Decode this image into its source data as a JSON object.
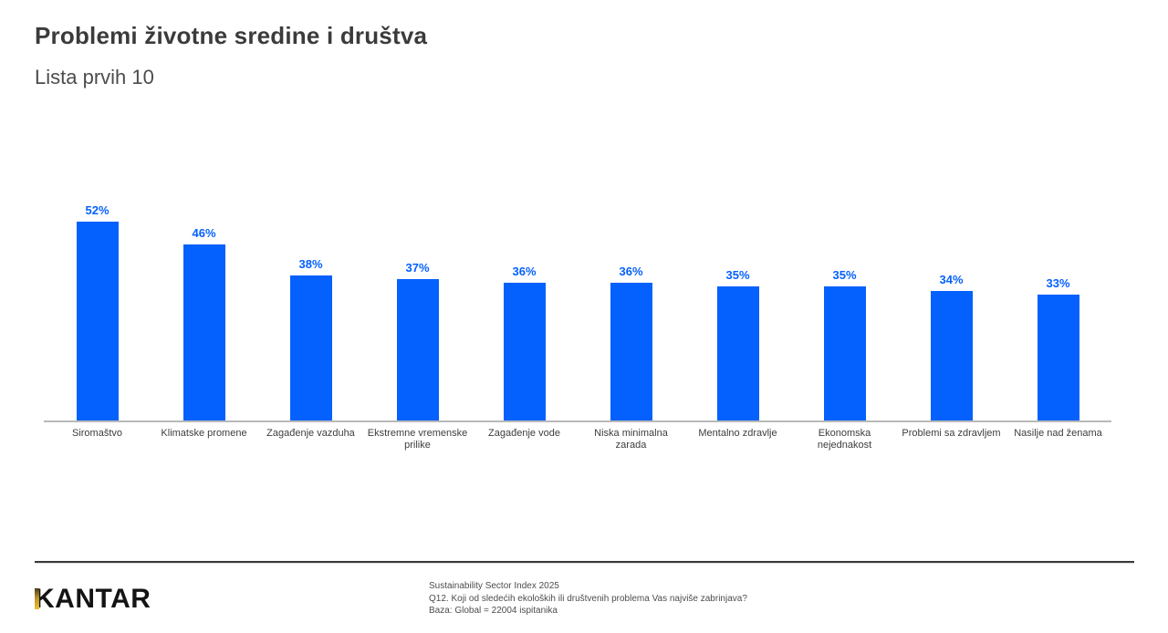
{
  "header": {
    "title": "Problemi životne sredine i društva",
    "subtitle": "Lista prvih 10"
  },
  "chart_data": {
    "type": "bar",
    "title": "Problemi životne sredine i društva",
    "subtitle": "Lista prvih 10",
    "categories": [
      "Siromaštvo",
      "Klimatske promene",
      "Zagađenje vazduha",
      "Ekstremne vremenske prilike",
      "Zagađenje vode",
      "Niska minimalna zarada",
      "Mentalno zdravlje",
      "Ekonomska nejednakost",
      "Problemi sa zdravljem",
      "Nasilje nad ženama"
    ],
    "values": [
      52,
      46,
      38,
      37,
      36,
      36,
      35,
      35,
      34,
      33
    ],
    "labels": [
      "52%",
      "46%",
      "38%",
      "37%",
      "36%",
      "36%",
      "35%",
      "35%",
      "34%",
      "33%"
    ],
    "unit": "%",
    "bar_color": "#0561fd",
    "value_label_color": "#0561fd",
    "xlabel": "",
    "ylabel": "",
    "ylim": [
      0,
      67
    ],
    "grid": false,
    "legend": false
  },
  "footer": {
    "logo_text": "KANTAR",
    "source_lines": [
      "Sustainability Sector Index 2025",
      "Q12. Koji od sledećih ekoloških ili društvenih problema Vas najviše zabrinjava?",
      "Baza: Global = 22004 ispitanika"
    ]
  },
  "colors": {
    "bar": "#0561fd",
    "title_text": "#3b3b3b",
    "axis_line": "#b9b9b9",
    "divider": "#3a3a3a",
    "logo_gold": "#edbf2e"
  }
}
